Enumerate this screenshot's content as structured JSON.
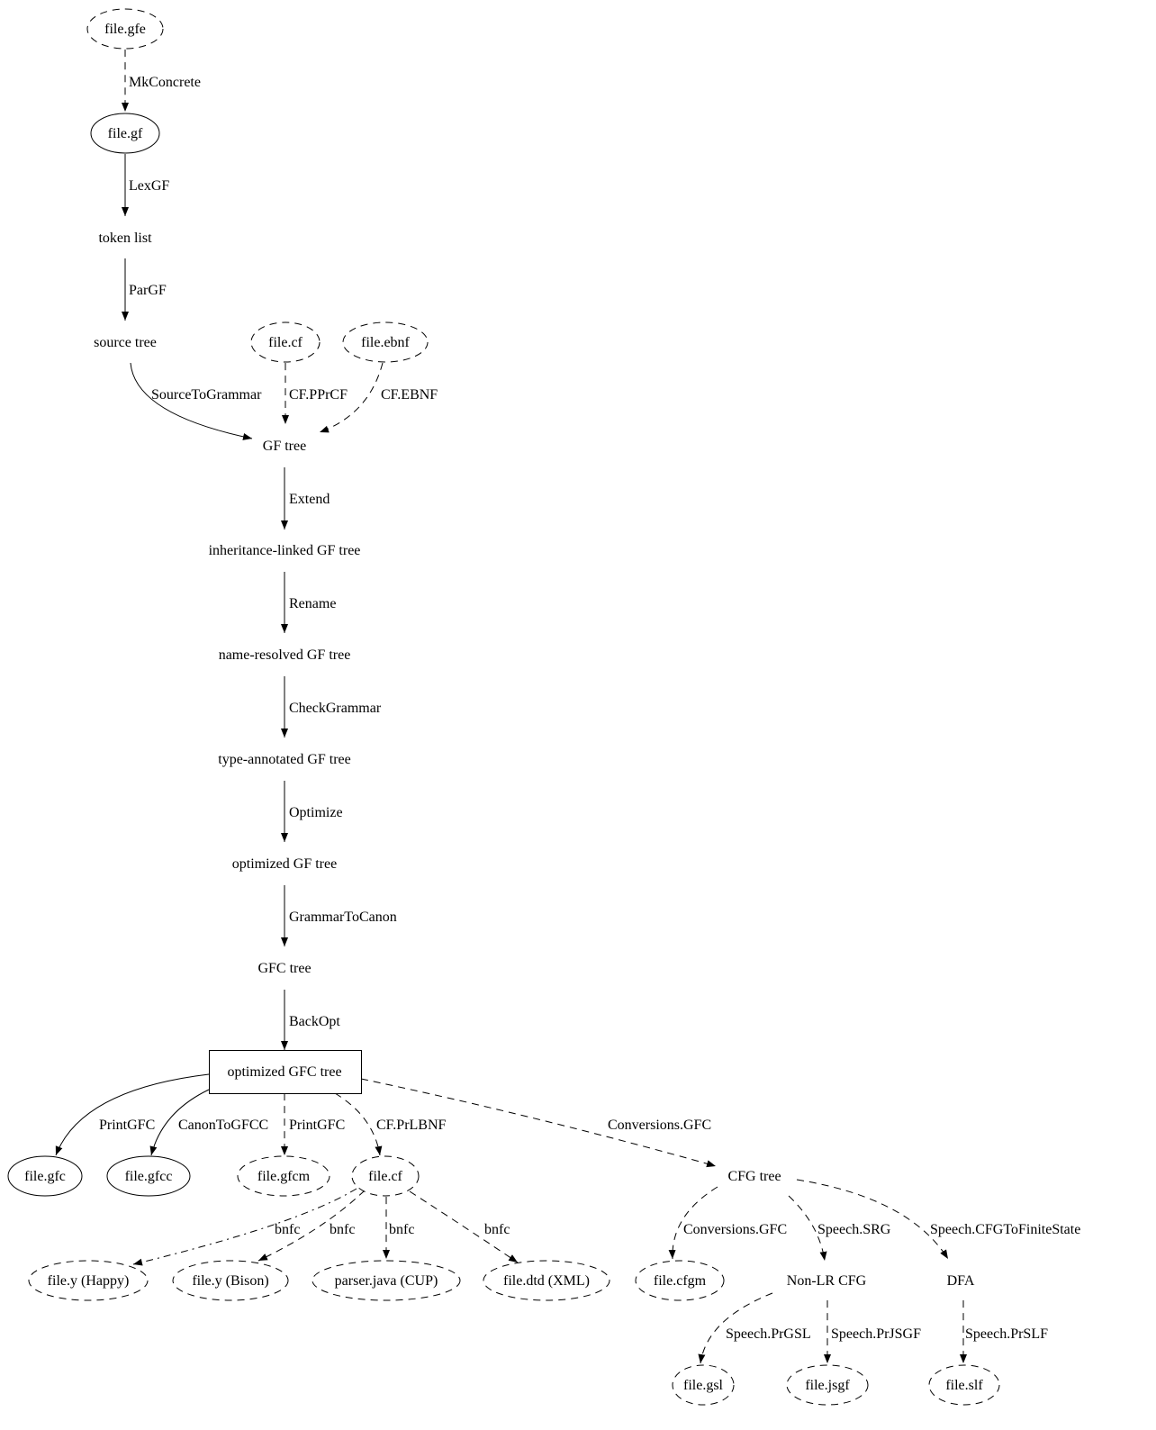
{
  "nodes": [
    {
      "id": "gfe",
      "label": "file.gfe",
      "shape": "ellipse",
      "style": "dashed"
    },
    {
      "id": "gf",
      "label": "file.gf",
      "shape": "ellipse",
      "style": "solid"
    },
    {
      "id": "tokens",
      "label": "token list",
      "shape": "plaintext",
      "style": "solid"
    },
    {
      "id": "source",
      "label": "source tree",
      "shape": "plaintext",
      "style": "solid"
    },
    {
      "id": "cf1",
      "label": "file.cf",
      "shape": "ellipse",
      "style": "dashed"
    },
    {
      "id": "ebnf",
      "label": "file.ebnf",
      "shape": "ellipse",
      "style": "dashed"
    },
    {
      "id": "gftree",
      "label": "GF tree",
      "shape": "plaintext",
      "style": "solid"
    },
    {
      "id": "inh",
      "label": "inheritance-linked GF tree",
      "shape": "plaintext",
      "style": "solid"
    },
    {
      "id": "nameres",
      "label": "name-resolved GF tree",
      "shape": "plaintext",
      "style": "solid"
    },
    {
      "id": "typeann",
      "label": "type-annotated GF tree",
      "shape": "plaintext",
      "style": "solid"
    },
    {
      "id": "optgf",
      "label": "optimized GF tree",
      "shape": "plaintext",
      "style": "solid"
    },
    {
      "id": "gfc",
      "label": "GFC tree",
      "shape": "plaintext",
      "style": "solid"
    },
    {
      "id": "optgfc",
      "label": "optimized GFC tree",
      "shape": "box",
      "style": "solid"
    },
    {
      "id": "gfcfile",
      "label": "file.gfc",
      "shape": "ellipse",
      "style": "solid"
    },
    {
      "id": "gfcc",
      "label": "file.gfcc",
      "shape": "ellipse",
      "style": "solid"
    },
    {
      "id": "gfcm",
      "label": "file.gfcm",
      "shape": "ellipse",
      "style": "dashed"
    },
    {
      "id": "cf2",
      "label": "file.cf",
      "shape": "ellipse",
      "style": "dashed"
    },
    {
      "id": "cfg",
      "label": "CFG tree",
      "shape": "plaintext",
      "style": "solid"
    },
    {
      "id": "happy",
      "label": "file.y (Happy)",
      "shape": "ellipse",
      "style": "dashed"
    },
    {
      "id": "bison",
      "label": "file.y (Bison)",
      "shape": "ellipse",
      "style": "dashed"
    },
    {
      "id": "cup",
      "label": "parser.java (CUP)",
      "shape": "ellipse",
      "style": "dashed"
    },
    {
      "id": "dtd",
      "label": "file.dtd (XML)",
      "shape": "ellipse",
      "style": "dashed"
    },
    {
      "id": "cfgm",
      "label": "file.cfgm",
      "shape": "ellipse",
      "style": "dashed"
    },
    {
      "id": "nonlr",
      "label": "Non-LR CFG",
      "shape": "plaintext",
      "style": "solid"
    },
    {
      "id": "dfa",
      "label": "DFA",
      "shape": "plaintext",
      "style": "solid"
    },
    {
      "id": "gsl",
      "label": "file.gsl",
      "shape": "ellipse",
      "style": "dashed"
    },
    {
      "id": "jsgf",
      "label": "file.jsgf",
      "shape": "ellipse",
      "style": "dashed"
    },
    {
      "id": "slf",
      "label": "file.slf",
      "shape": "ellipse",
      "style": "dashed"
    }
  ],
  "edges": [
    {
      "from": "gfe",
      "to": "gf",
      "label": "MkConcrete",
      "style": "dashed"
    },
    {
      "from": "gf",
      "to": "tokens",
      "label": "LexGF",
      "style": "solid"
    },
    {
      "from": "tokens",
      "to": "source",
      "label": "ParGF",
      "style": "solid"
    },
    {
      "from": "source",
      "to": "gftree",
      "label": "SourceToGrammar",
      "style": "solid"
    },
    {
      "from": "cf1",
      "to": "gftree",
      "label": "CF.PPrCF",
      "style": "dashed"
    },
    {
      "from": "ebnf",
      "to": "gftree",
      "label": "CF.EBNF",
      "style": "dashed"
    },
    {
      "from": "gftree",
      "to": "inh",
      "label": "Extend",
      "style": "solid"
    },
    {
      "from": "inh",
      "to": "nameres",
      "label": "Rename",
      "style": "solid"
    },
    {
      "from": "nameres",
      "to": "typeann",
      "label": "CheckGrammar",
      "style": "solid"
    },
    {
      "from": "typeann",
      "to": "optgf",
      "label": "Optimize",
      "style": "solid"
    },
    {
      "from": "optgf",
      "to": "gfc",
      "label": "GrammarToCanon",
      "style": "solid"
    },
    {
      "from": "gfc",
      "to": "optgfc",
      "label": "BackOpt",
      "style": "solid"
    },
    {
      "from": "optgfc",
      "to": "gfcfile",
      "label": "PrintGFC",
      "style": "solid"
    },
    {
      "from": "optgfc",
      "to": "gfcc",
      "label": "CanonToGFCC",
      "style": "solid"
    },
    {
      "from": "optgfc",
      "to": "gfcm",
      "label": "PrintGFC",
      "style": "dashed"
    },
    {
      "from": "optgfc",
      "to": "cf2",
      "label": "CF.PrLBNF",
      "style": "dashed"
    },
    {
      "from": "optgfc",
      "to": "cfg",
      "label": "Conversions.GFC",
      "style": "dashed"
    },
    {
      "from": "cf2",
      "to": "happy",
      "label": "bnfc",
      "style": "dashdot"
    },
    {
      "from": "cf2",
      "to": "bison",
      "label": "bnfc",
      "style": "dashed"
    },
    {
      "from": "cf2",
      "to": "cup",
      "label": "bnfc",
      "style": "dashed"
    },
    {
      "from": "cf2",
      "to": "dtd",
      "label": "bnfc",
      "style": "dashed"
    },
    {
      "from": "cfg",
      "to": "cfgm",
      "label": "Conversions.GFC",
      "style": "dashed"
    },
    {
      "from": "cfg",
      "to": "nonlr",
      "label": "Speech.SRG",
      "style": "dashed"
    },
    {
      "from": "cfg",
      "to": "dfa",
      "label": "Speech.CFGToFiniteState",
      "style": "dashed"
    },
    {
      "from": "nonlr",
      "to": "gsl",
      "label": "Speech.PrGSL",
      "style": "dashed"
    },
    {
      "from": "nonlr",
      "to": "jsgf",
      "label": "Speech.PrJSGF",
      "style": "dashed"
    },
    {
      "from": "dfa",
      "to": "slf",
      "label": "Speech.PrSLF",
      "style": "dashed"
    }
  ]
}
